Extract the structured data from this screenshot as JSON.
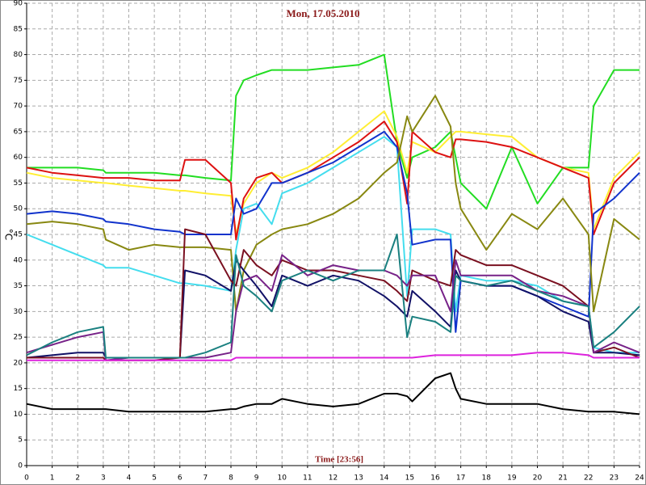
{
  "chart_data": {
    "type": "line",
    "title": "Mon, 17.05.2010",
    "xlabel": "Time [23:56]",
    "ylabel": "°C",
    "x": [
      0,
      1,
      2,
      3,
      3.1,
      4,
      5,
      6,
      6.2,
      7,
      8,
      8.2,
      8.5,
      9,
      9.6,
      10,
      11,
      12,
      13,
      14,
      14.5,
      14.9,
      15.1,
      16,
      16.6,
      16.8,
      17,
      18,
      19,
      20,
      21,
      22,
      22.2,
      23,
      24
    ],
    "xlim": [
      0,
      24
    ],
    "xticks": [
      0,
      1,
      2,
      3,
      4,
      5,
      6,
      7,
      8,
      9,
      10,
      11,
      12,
      13,
      14,
      15,
      16,
      17,
      18,
      19,
      20,
      21,
      22,
      23,
      24
    ],
    "ylim": [
      0,
      90
    ],
    "yticks": [
      0,
      5,
      10,
      15,
      20,
      25,
      30,
      35,
      40,
      45,
      50,
      55,
      60,
      65,
      70,
      75,
      80,
      85,
      90
    ],
    "grid": true,
    "series": [
      {
        "color": "#22dd22",
        "values": [
          58,
          58,
          58,
          57.5,
          57,
          57,
          57,
          56.5,
          56.5,
          56,
          55.5,
          72,
          75,
          76,
          77,
          77,
          77,
          77.5,
          78,
          80,
          63,
          56,
          60,
          62,
          65,
          60,
          55,
          50,
          62,
          51,
          58,
          58,
          70,
          77,
          77
        ]
      },
      {
        "color": "#ffee33",
        "values": [
          57,
          56,
          55.5,
          55,
          55,
          54.5,
          54,
          53.5,
          53.5,
          53,
          52.5,
          45,
          51,
          55,
          57,
          56,
          58,
          61,
          65,
          69,
          64,
          57,
          63,
          61,
          64,
          65,
          65,
          64.5,
          64,
          60,
          58,
          57,
          46,
          56,
          61
        ]
      },
      {
        "color": "#dd1111",
        "values": [
          58,
          57,
          56.5,
          56,
          56,
          56,
          55.5,
          55.5,
          59.5,
          59.5,
          55,
          44,
          52,
          56,
          57,
          55,
          57,
          60,
          63,
          67,
          63,
          51,
          65,
          61,
          60,
          63.5,
          63.5,
          63,
          62,
          60,
          58,
          56,
          45,
          55,
          60
        ]
      },
      {
        "color": "#44ddee",
        "values": [
          45,
          43,
          41,
          39,
          38.5,
          38.5,
          37,
          35.5,
          35.5,
          35,
          34,
          42,
          50,
          51,
          47,
          53,
          55,
          58,
          61,
          64,
          62,
          33,
          46,
          46,
          45,
          30,
          37,
          36,
          36,
          35,
          32,
          31,
          23,
          22,
          22
        ]
      },
      {
        "color": "#1133cc",
        "values": [
          49,
          49.5,
          49,
          48,
          47.5,
          47,
          46,
          45.5,
          45,
          45,
          45,
          52,
          49,
          50,
          55,
          55,
          57,
          59,
          62,
          65,
          62,
          53,
          43,
          44,
          44,
          26,
          36,
          35,
          35,
          33,
          31,
          29,
          49,
          52,
          57
        ]
      },
      {
        "color": "#888811",
        "values": [
          47,
          47.5,
          47,
          46,
          44,
          42,
          43,
          42.5,
          42.5,
          42.5,
          42,
          30,
          38,
          43,
          45,
          46,
          47,
          49,
          52,
          57,
          59,
          68,
          65,
          72,
          66,
          55,
          50,
          42,
          49,
          46,
          52,
          45,
          30,
          48,
          44
        ]
      },
      {
        "color": "#111166",
        "values": [
          21,
          21.5,
          22,
          22,
          21,
          21,
          21,
          21,
          38,
          37,
          34,
          40,
          38,
          35,
          31,
          37,
          35,
          37,
          36,
          33,
          31,
          29,
          34,
          30,
          27,
          38,
          36,
          35,
          35,
          33,
          30,
          28,
          22,
          22,
          21.5
        ]
      },
      {
        "color": "#7a1020",
        "values": [
          21,
          21,
          21,
          21,
          20.5,
          20.5,
          20.5,
          21,
          46,
          45,
          36,
          35,
          42,
          39,
          37,
          40,
          38,
          38,
          37,
          36,
          34,
          32,
          38,
          36,
          35,
          42,
          41,
          39,
          39,
          37,
          35,
          31,
          22,
          23,
          21
        ]
      },
      {
        "color": "#772288",
        "values": [
          22,
          23.5,
          25,
          26,
          20.5,
          21,
          21,
          21,
          21,
          21,
          22,
          30,
          36,
          37,
          34,
          41,
          37,
          39,
          38,
          38,
          37,
          35,
          37,
          37,
          30,
          40,
          37,
          37,
          37,
          34,
          33,
          31,
          22,
          24,
          22
        ]
      },
      {
        "color": "#1a8080",
        "values": [
          21.5,
          24,
          26,
          27,
          21,
          21,
          21,
          21,
          21,
          22,
          24,
          41,
          35,
          33,
          30,
          36,
          38,
          36,
          38,
          38,
          45,
          25,
          29,
          28,
          26,
          37,
          36,
          35,
          36,
          34,
          32,
          31,
          23,
          26,
          31
        ]
      },
      {
        "color": "#dd22dd",
        "values": [
          20.5,
          20.5,
          20.5,
          20.5,
          20.5,
          20.5,
          20.5,
          20.5,
          20.5,
          20.5,
          20.5,
          21,
          21,
          21,
          21,
          21,
          21,
          21,
          21,
          21,
          21,
          21,
          21,
          21.5,
          21.5,
          21.5,
          21.5,
          21.5,
          21.5,
          22,
          22,
          21.5,
          21,
          21,
          21
        ]
      },
      {
        "color": "#000000",
        "values": [
          12,
          11,
          11,
          11,
          11,
          10.5,
          10.5,
          10.5,
          10.5,
          10.5,
          11,
          11,
          11.5,
          12,
          12,
          13,
          12,
          11.5,
          12,
          14,
          14,
          13.5,
          12.5,
          17,
          18,
          15,
          13,
          12,
          12,
          12,
          11,
          10.5,
          10.5,
          10.5,
          10
        ]
      }
    ]
  }
}
